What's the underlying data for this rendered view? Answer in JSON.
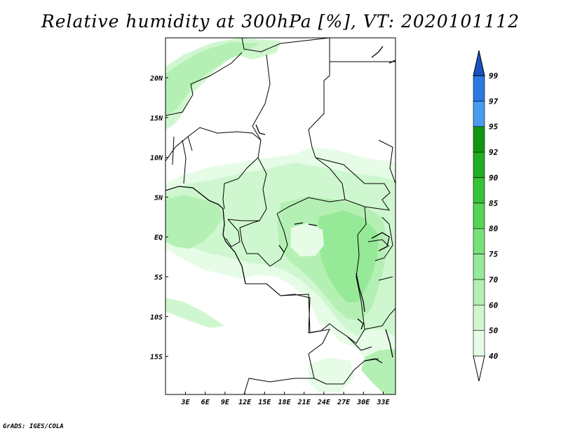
{
  "title": "Relative humidity at 300hPa [%], VT: 2020101112",
  "credit": "GrADS: IGES/COLA",
  "map": {
    "lat_labels": [
      "20N",
      "15N",
      "10N",
      "5N",
      "EQ",
      "5S",
      "10S",
      "15S"
    ],
    "lon_labels": [
      "3E",
      "6E",
      "9E",
      "12E",
      "15E",
      "18E",
      "21E",
      "24E",
      "27E",
      "30E",
      "33E"
    ]
  },
  "colorbar": {
    "levels": [
      "40",
      "50",
      "60",
      "70",
      "75",
      "80",
      "85",
      "90",
      "92",
      "95",
      "97",
      "99"
    ],
    "colors": [
      "#ffffff",
      "#e6fce6",
      "#cff7cf",
      "#b4f0b4",
      "#96e996",
      "#78e078",
      "#55d455",
      "#37c337",
      "#22ad22",
      "#129612",
      "#4a9cf0",
      "#2a78e0",
      "#1a50c0"
    ]
  }
}
